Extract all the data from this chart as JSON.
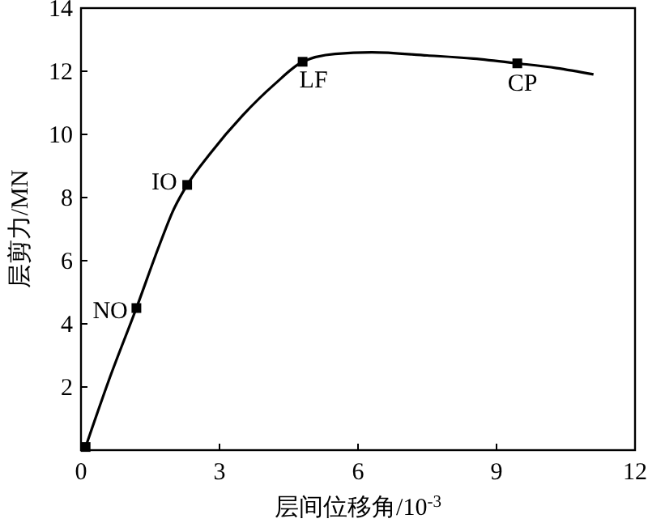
{
  "chart_data": {
    "type": "line",
    "xlabel": "层间位移角/10$^{-3}$",
    "ylabel": "层剪力/MN",
    "xlim": [
      0,
      12
    ],
    "xticks": [
      0,
      3,
      6,
      9,
      12
    ],
    "ylim": [
      0,
      14
    ],
    "yticks": [
      {
        "value": 0,
        "label": null
      },
      2,
      4,
      6,
      8,
      10,
      12,
      14
    ],
    "grid": false,
    "series": [
      {
        "color": "#000000",
        "marker": "none",
        "x": [
          0.1,
          0.6,
          1.2,
          1.7,
          2.0,
          2.3,
          2.8,
          3.5,
          4.2,
          4.8,
          5.5,
          6.3,
          7.5,
          8.5,
          9.45,
          10.3,
          11.1
        ],
        "values": [
          0.1,
          2.2,
          4.5,
          6.5,
          7.6,
          8.4,
          9.4,
          10.6,
          11.6,
          12.3,
          12.55,
          12.6,
          12.5,
          12.4,
          12.25,
          12.1,
          11.9
        ]
      },
      {
        "type": "scatter",
        "color": "#000000",
        "marker": "square",
        "x": [
          0.1,
          1.2,
          2.3,
          4.8,
          9.45
        ],
        "values": [
          0.1,
          4.5,
          8.4,
          12.3,
          12.25
        ]
      }
    ],
    "annotations": [
      {
        "text": "NO",
        "x": 1.2,
        "y": 4.5
      },
      {
        "text": "IO",
        "x": 2.3,
        "y": 8.4
      },
      {
        "text": "LF",
        "x": 4.8,
        "y": 12.3
      },
      {
        "text": "CP",
        "x": 9.45,
        "y": 12.25
      }
    ]
  }
}
